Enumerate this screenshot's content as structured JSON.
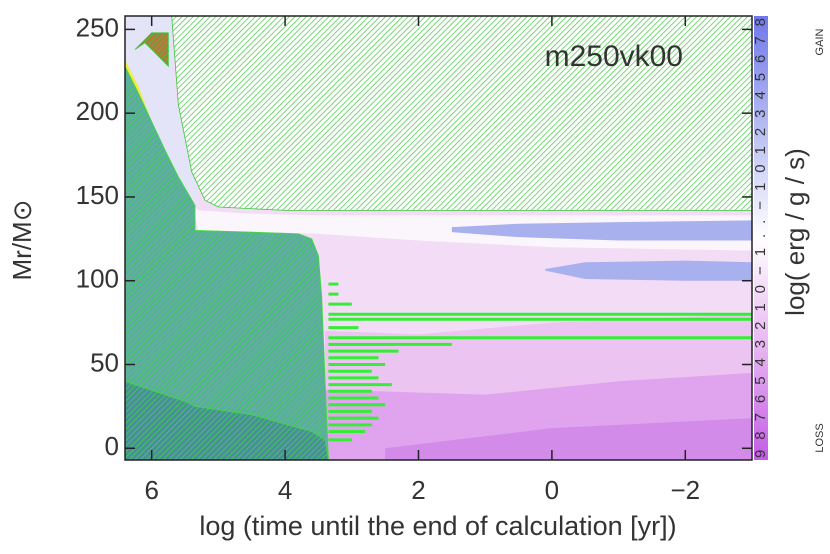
{
  "chart_data": {
    "type": "kippenhahn",
    "title": "m250vk00",
    "x_label": "log (time until the end of calculation [yr])",
    "y_label": "Mr/M⊙",
    "xlim": [
      6.4,
      -3
    ],
    "ylim": [
      -7,
      258
    ],
    "xticks": [
      6,
      4,
      2,
      0,
      {
        "value": -2,
        "label": "−2"
      }
    ],
    "yticks": [
      0,
      50,
      100,
      150,
      200,
      250
    ],
    "background": "#f3dcf5",
    "regions": [
      {
        "color": "#e4e4f8",
        "x": [
          6.4,
          5.7,
          5.65,
          5.55,
          5.4,
          5.3,
          5.7,
          6.0,
          6.4
        ],
        "y": [
          258,
          258,
          210,
          206,
          190,
          146,
          160,
          180,
          228
        ]
      },
      {
        "color": "#f4ec3c",
        "x": [
          6.4,
          6.2,
          6.0,
          5.8,
          5.7,
          5.9,
          6.1,
          6.4
        ],
        "y": [
          232,
          216,
          195,
          172,
          160,
          175,
          200,
          222
        ]
      },
      {
        "color": "#fbf6fc",
        "x": [
          5.4,
          5.3,
          4.5,
          3.5,
          2,
          0,
          -3,
          -3,
          0,
          2,
          3.5,
          5.3
        ],
        "y": [
          146,
          142,
          140,
          139,
          139,
          139,
          139,
          118,
          120,
          124,
          128,
          130
        ]
      },
      {
        "color": "#ebc4f1",
        "x": [
          3.4,
          2,
          0,
          -3,
          -3,
          3.4
        ],
        "y": [
          70,
          68,
          75,
          80,
          -7,
          -7
        ]
      },
      {
        "color": "#dfa4ed",
        "x": [
          3.4,
          1,
          -1,
          -3,
          -3,
          3.4
        ],
        "y": [
          35,
          32,
          40,
          45,
          -7,
          -7
        ]
      },
      {
        "color": "#d38bea",
        "x": [
          2.5,
          0,
          -3,
          -3,
          2.5
        ],
        "y": [
          0,
          12,
          18,
          -7,
          -7
        ]
      },
      {
        "color": "#a9b0ee",
        "x": [
          1.5,
          0.5,
          -1,
          -3,
          -3,
          -1,
          0.5,
          1.5
        ],
        "y": [
          129,
          126,
          124,
          124,
          136,
          135,
          134,
          132
        ]
      },
      {
        "color": "#a9b0ee",
        "x": [
          0.1,
          -0.5,
          -2,
          -3,
          -3,
          -2,
          -0.5,
          0.1
        ],
        "y": [
          106,
          101,
          100,
          100,
          111,
          112,
          111,
          107
        ]
      },
      {
        "color": "#5fa9a6",
        "hatch": "#3ddc3d",
        "x": [
          6.4,
          6.2,
          6,
          5.8,
          5.6,
          5.35,
          5.35,
          4.5,
          3.8,
          3.6,
          3.5,
          3.45,
          3.4,
          3.35,
          6.4
        ],
        "y": [
          228,
          212,
          195,
          178,
          162,
          145,
          130,
          129,
          128,
          125,
          115,
          90,
          40,
          -7,
          -7
        ]
      },
      {
        "color": "#4a8e9c",
        "hatch": "#3ddc3d",
        "x": [
          6.4,
          5.5,
          5.35,
          4.5,
          3.6,
          3.4,
          3.35,
          6.4
        ],
        "y": [
          40,
          28,
          25,
          20,
          10,
          5,
          -7,
          -7
        ]
      },
      {
        "color": "#ffffff",
        "hatch": "#3cc83c",
        "x": [
          5.7,
          -3,
          -3,
          4,
          5,
          5.2,
          5.4,
          5.6,
          5.7
        ],
        "y": [
          258,
          258,
          142,
          142,
          144,
          148,
          165,
          205,
          258
        ]
      },
      {
        "color": "#b07a3a",
        "hatch": "#3cc83c",
        "x": [
          6.25,
          6.0,
          5.75,
          5.75,
          6.1
        ],
        "y": [
          238,
          248,
          248,
          228,
          242
        ]
      }
    ],
    "shells": {
      "color": "#33ee33",
      "y": [
        5,
        10,
        14,
        18,
        22,
        26,
        30,
        34,
        38,
        42,
        46,
        50,
        54,
        58,
        62,
        66,
        72,
        77,
        80,
        86,
        92,
        98
      ],
      "x_start": [
        3.35,
        3.35,
        3.35,
        3.35,
        3.35,
        3.35,
        3.35,
        3.35,
        3.35,
        3.35,
        3.35,
        3.35,
        3.35,
        3.35,
        3.35,
        3.35,
        3.35,
        3.35,
        3.35,
        3.35,
        3.35,
        3.35
      ],
      "x_end": [
        3.0,
        2.8,
        2.7,
        2.6,
        2.7,
        2.5,
        2.6,
        2.7,
        2.4,
        2.6,
        2.7,
        2.5,
        2.6,
        2.3,
        1.5,
        -3,
        2.9,
        -3,
        -3,
        3.0,
        3.2,
        3.2
      ]
    },
    "colorbar": {
      "label": "log( erg / g / s)",
      "ticks_text": "9876543210−1..−1012345678",
      "gain": "GAIN",
      "loss": "LOSS",
      "colors": [
        "#c35be6",
        "#e6b5f0",
        "#ffffff",
        "#b7bcf2",
        "#6f78ea"
      ]
    }
  }
}
